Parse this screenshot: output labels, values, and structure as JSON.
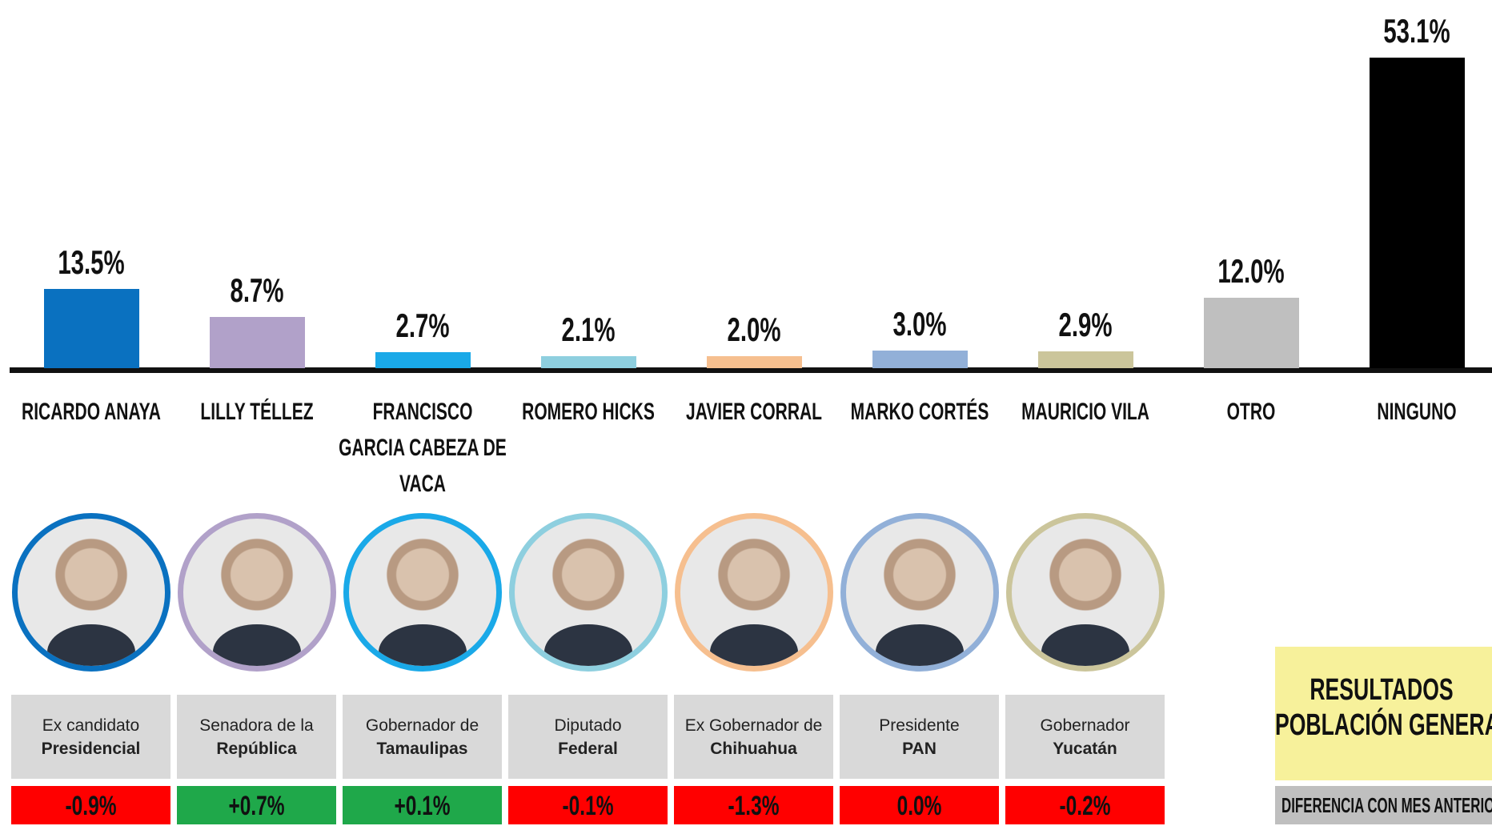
{
  "chart_data": {
    "type": "bar",
    "categories": [
      "RICARDO ANAYA",
      "LILLY TÉLLEZ",
      "FRANCISCO GARCIA CABEZA DE VACA",
      "ROMERO HICKS",
      "JAVIER CORRAL",
      "MARKO CORTÉS",
      "MAURICIO VILA",
      "OTRO",
      "NINGUNO"
    ],
    "values": [
      13.5,
      8.7,
      2.7,
      2.1,
      2.0,
      3.0,
      2.9,
      12.0,
      53.1
    ],
    "value_labels": [
      "13.5%",
      "8.7%",
      "2.7%",
      "2.1%",
      "2.0%",
      "3.0%",
      "2.9%",
      "12.0%",
      "53.1%"
    ],
    "colors": [
      "#0a71c0",
      "#b1a1c9",
      "#1aa9e8",
      "#8ecfdf",
      "#f6bf8f",
      "#92b0d8",
      "#cbc59b",
      "#bfbfbf",
      "#000000"
    ]
  },
  "profiles": {
    "descriptions": [
      [
        "Ex candidato",
        "Presidencial"
      ],
      [
        "Senadora de la",
        "República"
      ],
      [
        "Gobernador de",
        "Tamaulipas"
      ],
      [
        "Diputado",
        "Federal"
      ],
      [
        "Ex Gobernador de",
        "Chihuahua"
      ],
      [
        "Presidente",
        "PAN"
      ],
      [
        "Gobernador",
        "Yucatán"
      ]
    ],
    "changes": [
      -0.9,
      0.7,
      0.1,
      -0.1,
      -1.3,
      0.0,
      -0.2
    ],
    "change_labels": [
      "-0.9%",
      "+0.7%",
      "+0.1%",
      "-0.1%",
      "-1.3%",
      "0.0%",
      "-0.2%"
    ]
  },
  "legend_box": {
    "title": "RESULTADOS",
    "subtitle": "POBLACIÓN GENERAL",
    "note": "DIFERENCIA CON MES ANTERIOR"
  }
}
